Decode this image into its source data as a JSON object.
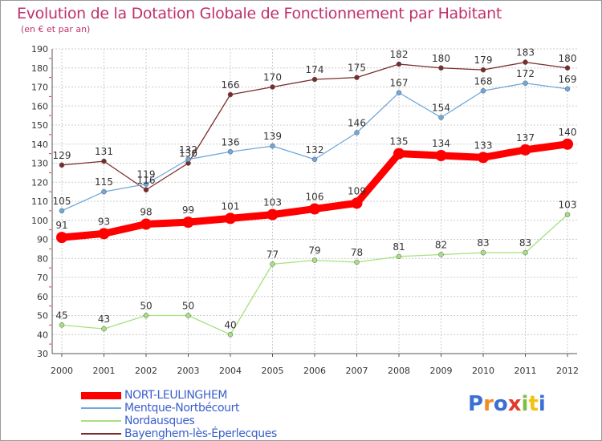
{
  "chart_data": {
    "type": "line",
    "title": "Evolution de la Dotation Globale de Fonctionnement par Habitant",
    "subtitle": "(en € et par an)",
    "xlabel": "",
    "ylabel": "",
    "x": [
      "2000",
      "2001",
      "2002",
      "2003",
      "2004",
      "2005",
      "2006",
      "2007",
      "2008",
      "2009",
      "2010",
      "2011",
      "2012"
    ],
    "ylim": [
      30,
      190
    ],
    "yticks": [
      30,
      40,
      50,
      60,
      70,
      80,
      90,
      100,
      110,
      120,
      130,
      140,
      150,
      160,
      170,
      180,
      190
    ],
    "grid": true,
    "series": [
      {
        "name": "NORT-LEULINGHEM",
        "color": "#ff0000",
        "values": [
          91,
          93,
          98,
          99,
          101,
          103,
          106,
          109,
          135,
          134,
          133,
          137,
          140
        ]
      },
      {
        "name": "Mentque-Nortbécourt",
        "color": "#6fa8dc",
        "values": [
          105,
          115,
          119,
          132,
          136,
          139,
          132,
          146,
          167,
          154,
          168,
          172,
          169
        ]
      },
      {
        "name": "Nordausques",
        "color": "#a6e07f",
        "values": [
          45,
          43,
          50,
          50,
          40,
          77,
          79,
          78,
          81,
          82,
          83,
          83,
          103
        ]
      },
      {
        "name": "Bayenghem-lès-Éperlecques",
        "color": "#7a2c2c",
        "values": [
          129,
          131,
          116,
          130,
          166,
          170,
          174,
          175,
          182,
          180,
          179,
          183,
          180
        ]
      }
    ]
  },
  "brand": {
    "name": "Proxiti",
    "letters": [
      "P",
      "r",
      "o",
      "x",
      "i",
      "t",
      "i"
    ],
    "colors": [
      "#3b6fd4",
      "#f28c1e",
      "#3b6fd4",
      "#e23b2e",
      "#7cc043",
      "#f2c20f",
      "#3b6fd4"
    ]
  }
}
